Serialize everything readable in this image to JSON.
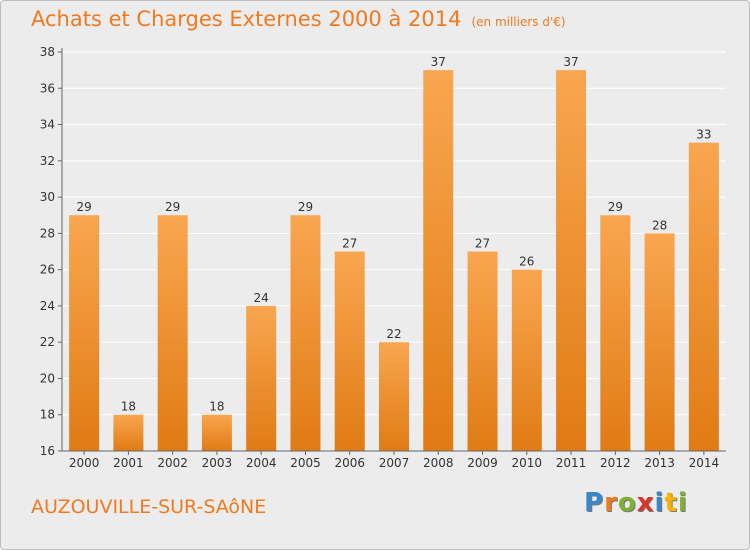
{
  "title": "Achats et Charges Externes 2000 à 2014",
  "subtitle": "(en milliers d'€)",
  "commune": "AUZOUVILLE-SUR-SAôNE",
  "logo": {
    "letters": [
      "P",
      "r",
      "o",
      "x",
      "i",
      "t",
      "i"
    ],
    "colors": [
      "#3a87c8",
      "#f07a1f",
      "#7fb135",
      "#d9342b",
      "#3a87c8",
      "#f4b400",
      "#7fb135"
    ]
  },
  "colors": {
    "bar_top": "#f9a650",
    "bar_bottom": "#e07b14",
    "title": "#f07a1f",
    "grid": "#ffffff"
  },
  "chart_data": {
    "type": "bar",
    "title": "Achats et Charges Externes 2000 à 2014",
    "subtitle": "(en milliers d'€)",
    "categories": [
      "2000",
      "2001",
      "2002",
      "2003",
      "2004",
      "2005",
      "2006",
      "2007",
      "2008",
      "2009",
      "2010",
      "2011",
      "2012",
      "2013",
      "2014"
    ],
    "values": [
      29,
      18,
      29,
      18,
      24,
      29,
      27,
      22,
      37,
      27,
      26,
      37,
      29,
      28,
      33
    ],
    "ylim": [
      16,
      38
    ],
    "yticks": [
      16,
      18,
      20,
      22,
      24,
      26,
      28,
      30,
      32,
      34,
      36,
      38
    ],
    "grid": true,
    "legend": "none"
  }
}
